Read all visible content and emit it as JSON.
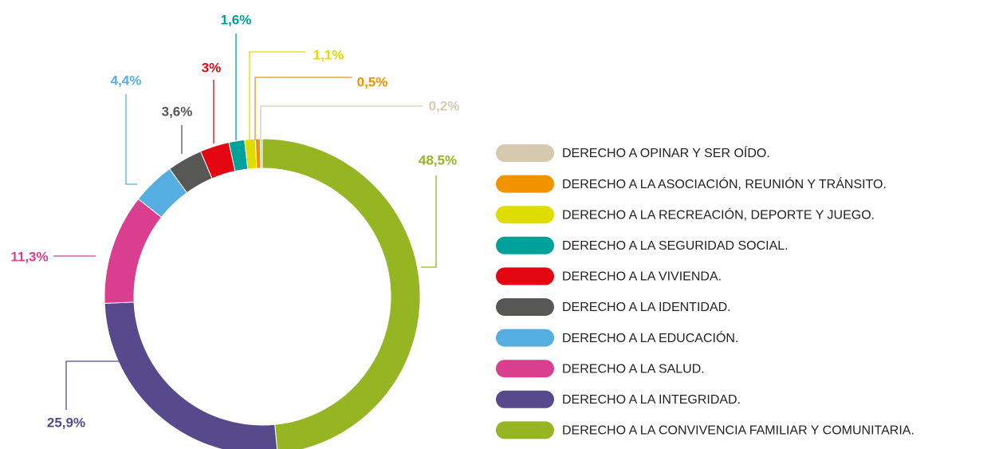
{
  "chart_data": {
    "type": "donut",
    "categories": [
      "DERECHO A OPINAR Y SER OÍDO.",
      "DERECHO A LA ASOCIACIÓN, REUNIÓN Y TRÁNSITO.",
      "DERECHO A LA RECREACIÓN, DEPORTE Y JUEGO.",
      "DERECHO A LA SEGURIDAD SOCIAL.",
      "DERECHO A LA VIVIENDA.",
      "DERECHO A LA IDENTIDAD.",
      "DERECHO A LA EDUCACIÓN.",
      "DERECHO A LA SALUD.",
      "DERECHO A LA INTEGRIDAD.",
      "DERECHO A LA CONVIVENCIA FAMILIAR Y COMUNITARIA."
    ],
    "values": [
      0.2,
      0.5,
      1.1,
      1.6,
      3,
      3.6,
      4.4,
      11.3,
      25.9,
      48.5
    ],
    "value_labels": [
      "0,2%",
      "0,5%",
      "1,1%",
      "1,6%",
      "3%",
      "3,6%",
      "4,4%",
      "11,3%",
      "25,9%",
      "48,5%"
    ],
    "colors": [
      "#d6c9b0",
      "#f39200",
      "#dedc00",
      "#00a19a",
      "#e30613",
      "#575756",
      "#56ade0",
      "#d93f8e",
      "#56498c",
      "#95b523"
    ],
    "legend": "right"
  }
}
